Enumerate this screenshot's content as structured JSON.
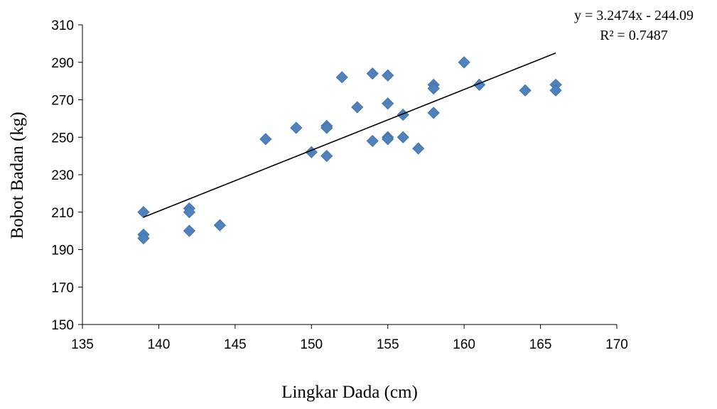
{
  "chart_data": {
    "type": "scatter",
    "xlabel": "Lingkar Dada (cm)",
    "ylabel": "Bobot Badan (kg)",
    "xlim": [
      135,
      170
    ],
    "ylim": [
      150,
      310
    ],
    "x_ticks": [
      135,
      140,
      145,
      150,
      155,
      160,
      165,
      170
    ],
    "y_ticks": [
      150,
      170,
      190,
      210,
      230,
      250,
      270,
      290,
      310
    ],
    "grid": false,
    "marker": "diamond",
    "marker_color": "#4F81BD",
    "trendline": {
      "type": "linear",
      "slope": 3.2474,
      "intercept": -244.09,
      "x_range": [
        139,
        166
      ],
      "equation_label": "y = 3.2474x - 244.09",
      "r2_label": "R² = 0.7487",
      "color": "#000000"
    },
    "series": [
      {
        "points": [
          [
            139,
            210
          ],
          [
            139,
            198
          ],
          [
            139,
            196
          ],
          [
            142,
            212
          ],
          [
            142,
            210
          ],
          [
            142,
            200
          ],
          [
            144,
            203
          ],
          [
            147,
            249
          ],
          [
            149,
            255
          ],
          [
            150,
            242
          ],
          [
            151,
            256
          ],
          [
            151,
            255
          ],
          [
            151,
            240
          ],
          [
            152,
            282
          ],
          [
            153,
            266
          ],
          [
            154,
            284
          ],
          [
            154,
            248
          ],
          [
            155,
            283
          ],
          [
            155,
            268
          ],
          [
            155,
            250
          ],
          [
            155,
            249
          ],
          [
            156,
            262
          ],
          [
            156,
            250
          ],
          [
            157,
            244
          ],
          [
            158,
            278
          ],
          [
            158,
            276
          ],
          [
            158,
            263
          ],
          [
            160,
            290
          ],
          [
            161,
            278
          ],
          [
            164,
            275
          ],
          [
            166,
            278
          ],
          [
            166,
            275
          ]
        ]
      }
    ]
  }
}
